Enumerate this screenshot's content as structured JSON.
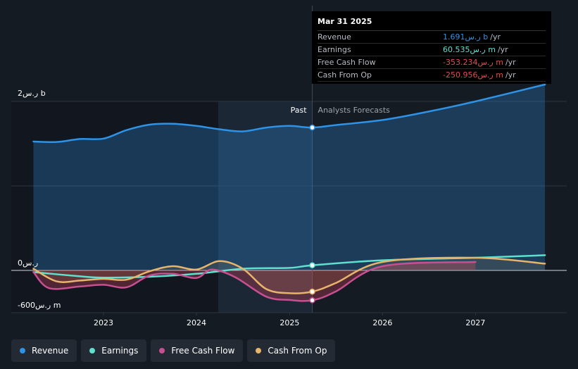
{
  "chart_data": {
    "type": "line",
    "y_axis_labels": [
      "2ر.س b",
      "0ر.س",
      "-600ر.س m"
    ],
    "x_tick_labels": [
      "2023",
      "2024",
      "2025",
      "2026",
      "2027"
    ],
    "ylim_millions": [
      -600,
      2000
    ],
    "past_label": "Past",
    "forecast_label": "Analysts Forecasts",
    "divider_date": "2025-03-31",
    "series": [
      {
        "name": "Revenue",
        "color": "#2e93e6",
        "points": [
          [
            "2022-04-01",
            1525
          ],
          [
            "2022-07-01",
            1520
          ],
          [
            "2022-10-01",
            1555
          ],
          [
            "2023-01-01",
            1560
          ],
          [
            "2023-04-01",
            1660
          ],
          [
            "2023-07-01",
            1725
          ],
          [
            "2023-10-01",
            1735
          ],
          [
            "2024-01-01",
            1710
          ],
          [
            "2024-04-01",
            1670
          ],
          [
            "2024-07-01",
            1645
          ],
          [
            "2024-10-01",
            1690
          ],
          [
            "2025-01-01",
            1710
          ],
          [
            "2025-03-31",
            1691
          ],
          [
            "2025-07-01",
            1720
          ],
          [
            "2026-01-01",
            1780
          ],
          [
            "2026-07-01",
            1880
          ],
          [
            "2027-01-01",
            2000
          ],
          [
            "2027-10-01",
            2200
          ]
        ]
      },
      {
        "name": "Earnings",
        "color": "#5fe0cf",
        "points": [
          [
            "2022-04-01",
            -20
          ],
          [
            "2022-10-01",
            -70
          ],
          [
            "2023-01-01",
            -85
          ],
          [
            "2023-07-01",
            -75
          ],
          [
            "2024-01-01",
            -40
          ],
          [
            "2024-07-01",
            20
          ],
          [
            "2025-01-01",
            30
          ],
          [
            "2025-03-31",
            60.535
          ],
          [
            "2026-01-01",
            120
          ],
          [
            "2027-01-01",
            150
          ],
          [
            "2027-10-01",
            180
          ]
        ]
      },
      {
        "name": "Free Cash Flow",
        "color": "#c84f91",
        "points": [
          [
            "2022-04-01",
            -20
          ],
          [
            "2022-06-01",
            -210
          ],
          [
            "2022-10-01",
            -190
          ],
          [
            "2023-01-01",
            -170
          ],
          [
            "2023-04-01",
            -200
          ],
          [
            "2023-07-01",
            -60
          ],
          [
            "2023-10-01",
            -40
          ],
          [
            "2024-01-01",
            -90
          ],
          [
            "2024-03-01",
            10
          ],
          [
            "2024-06-01",
            -80
          ],
          [
            "2024-10-01",
            -310
          ],
          [
            "2025-01-01",
            -350
          ],
          [
            "2025-03-31",
            -353.234
          ],
          [
            "2025-07-01",
            -250
          ],
          [
            "2026-01-01",
            50
          ],
          [
            "2027-01-01",
            100
          ]
        ]
      },
      {
        "name": "Cash From Op",
        "color": "#e6b46a",
        "points": [
          [
            "2022-04-01",
            20
          ],
          [
            "2022-07-01",
            -130
          ],
          [
            "2022-10-01",
            -120
          ],
          [
            "2023-01-01",
            -100
          ],
          [
            "2023-04-01",
            -110
          ],
          [
            "2023-07-01",
            -10
          ],
          [
            "2023-10-01",
            50
          ],
          [
            "2024-01-01",
            10
          ],
          [
            "2024-04-01",
            110
          ],
          [
            "2024-07-01",
            20
          ],
          [
            "2024-10-01",
            -220
          ],
          [
            "2025-01-01",
            -270
          ],
          [
            "2025-03-31",
            -250.956
          ],
          [
            "2025-07-01",
            -150
          ],
          [
            "2026-01-01",
            100
          ],
          [
            "2027-01-01",
            150
          ],
          [
            "2027-10-01",
            80
          ]
        ]
      }
    ]
  },
  "tooltip": {
    "date": "Mar 31 2025",
    "rows": [
      {
        "label": "Revenue",
        "value": "1.691ر.س b",
        "unit": "/yr",
        "color": "#2e93e6"
      },
      {
        "label": "Earnings",
        "value": "60.535ر.س m",
        "unit": "/yr",
        "color": "#5fe0cf"
      },
      {
        "label": "Free Cash Flow",
        "value": "-353.234ر.س m",
        "unit": "/yr",
        "color": "#e84a4a"
      },
      {
        "label": "Cash From Op",
        "value": "-250.956ر.س m",
        "unit": "/yr",
        "color": "#e84a4a"
      }
    ]
  },
  "legend": [
    {
      "label": "Revenue",
      "color": "#2e93e6"
    },
    {
      "label": "Earnings",
      "color": "#5fe0cf"
    },
    {
      "label": "Free Cash Flow",
      "color": "#c84f91"
    },
    {
      "label": "Cash From Op",
      "color": "#e6b46a"
    }
  ]
}
